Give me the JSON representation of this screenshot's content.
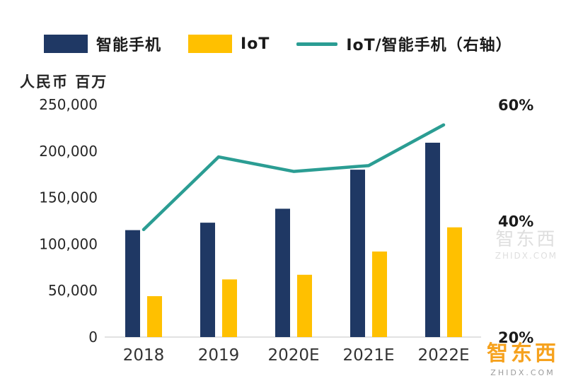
{
  "chart_data": {
    "type": "bar+line",
    "categories": [
      "2018",
      "2019",
      "2020E",
      "2021E",
      "2022E"
    ],
    "series": [
      {
        "name": "智能手机",
        "type": "bar",
        "color": "#1F3864",
        "axis": "left",
        "values": [
          115000,
          123000,
          138000,
          180000,
          209000
        ]
      },
      {
        "name": "IoT",
        "type": "bar",
        "color": "#FFC000",
        "axis": "left",
        "values": [
          44000,
          62000,
          67000,
          92000,
          118000
        ]
      },
      {
        "name": "IoT/智能手机（右轴）",
        "type": "line",
        "color": "#2B9D93",
        "axis": "right",
        "values": [
          38.5,
          51.0,
          48.5,
          49.5,
          56.5
        ]
      }
    ],
    "left_axis": {
      "label": "人民币 百万",
      "min": 0,
      "max": 250000,
      "ticks": [
        0,
        50000,
        100000,
        150000,
        200000,
        250000
      ],
      "tick_labels": [
        "0",
        "50,000",
        "100,000",
        "150,000",
        "200,000",
        "250,000"
      ]
    },
    "right_axis": {
      "min": 20,
      "max": 60,
      "ticks": [
        20,
        40,
        60
      ],
      "tick_labels": [
        "20%",
        "40%",
        "60%"
      ]
    },
    "grid": "off",
    "legend_position": "top"
  },
  "watermarks": {
    "faint": {
      "text": "智东西",
      "subtext": "ZHIDX.COM"
    },
    "logo": {
      "text": "智东西",
      "subtext": "ZHIDX.COM",
      "color": "#F6A21E"
    }
  }
}
